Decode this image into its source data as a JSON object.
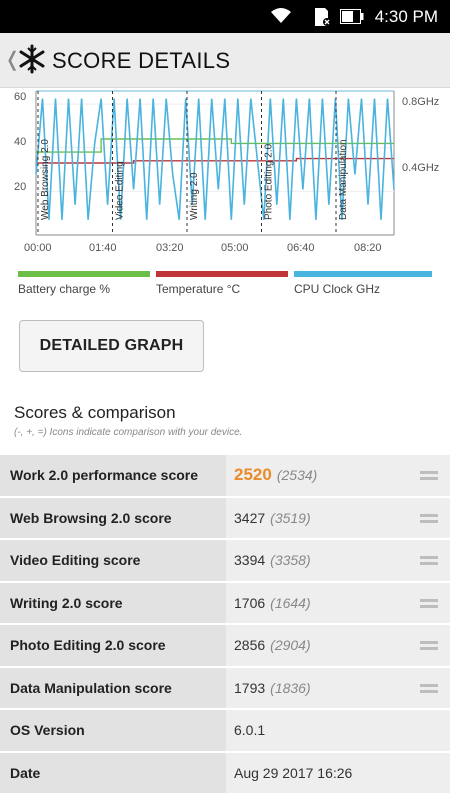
{
  "status_bar": {
    "time": "4:30 PM"
  },
  "app_bar": {
    "title": "SCORE DETAILS"
  },
  "chart_data": {
    "type": "line",
    "x_ticks": [
      "00:00",
      "01:40",
      "03:20",
      "05:00",
      "06:40",
      "08:20"
    ],
    "y_left_ticks": [
      "60",
      "40",
      "20"
    ],
    "y_right_ticks": [
      "0.8GHz",
      "0.4GHz"
    ],
    "segments": [
      "Web Browsing 2.0",
      "Video Editing",
      "Writing 2.0",
      "Photo Editing 2.0",
      "Data Manipulation"
    ],
    "series": [
      {
        "name": "Battery charge %",
        "color": "#6cc04a",
        "values": [
          38,
          38,
          44,
          44,
          44,
          44,
          42,
          42,
          42,
          42,
          42,
          42
        ]
      },
      {
        "name": "Temperature °C",
        "color": "#c0353a",
        "values": [
          33,
          33,
          33,
          34,
          34,
          34,
          34,
          34,
          35,
          35,
          35,
          35
        ]
      },
      {
        "name": "CPU Clock GHz",
        "color": "#4ab3df",
        "values": [
          0.4,
          0.9,
          0.1,
          0.9,
          0.1,
          0.9,
          0.2,
          0.9,
          0.1,
          0.6,
          0.9,
          0.2,
          0.9,
          0.1,
          0.9,
          0.3,
          0.9,
          0.1,
          0.9,
          0.2,
          0.9,
          0.4,
          0.1,
          0.9,
          0.2,
          0.9,
          0.1,
          0.9,
          0.3,
          0.9,
          0.1,
          0.9,
          0.2,
          0.9,
          0.5,
          0.1,
          0.9,
          0.2,
          0.9,
          0.1,
          0.9,
          0.3,
          0.9,
          0.1,
          0.9,
          0.2,
          0.9,
          0.1,
          0.9,
          0.4,
          0.9,
          0.2,
          0.9,
          0.1,
          0.9,
          0.3
        ]
      }
    ]
  },
  "legend": [
    {
      "label": "Battery charge %",
      "color": "#6cc04a"
    },
    {
      "label": "Temperature °C",
      "color": "#c0353a"
    },
    {
      "label": "CPU Clock GHz",
      "color": "#4ab3df"
    }
  ],
  "detailed_graph_button": "DETAILED GRAPH",
  "scores_section": {
    "title": "Scores & comparison",
    "subtitle": "(-, +, =) Icons indicate comparison with your device."
  },
  "scores": [
    {
      "label": "Work 2.0 performance score",
      "value": "2520",
      "ref": "(2534)"
    },
    {
      "label": "Web Browsing 2.0 score",
      "value": "3427",
      "ref": "(3519)"
    },
    {
      "label": "Video Editing score",
      "value": "3394",
      "ref": "(3358)"
    },
    {
      "label": "Writing 2.0 score",
      "value": "1706",
      "ref": "(1644)"
    },
    {
      "label": "Photo Editing 2.0 score",
      "value": "2856",
      "ref": "(2904)"
    },
    {
      "label": "Data Manipulation score",
      "value": "1793",
      "ref": "(1836)"
    }
  ],
  "info": [
    {
      "label": "OS Version",
      "value": "6.0.1"
    },
    {
      "label": "Date",
      "value": "Aug 29 2017 16:26"
    }
  ],
  "icons": {
    "compare": "equal-icon",
    "back": "chevron-left-icon",
    "logo": "snowflake-icon"
  }
}
